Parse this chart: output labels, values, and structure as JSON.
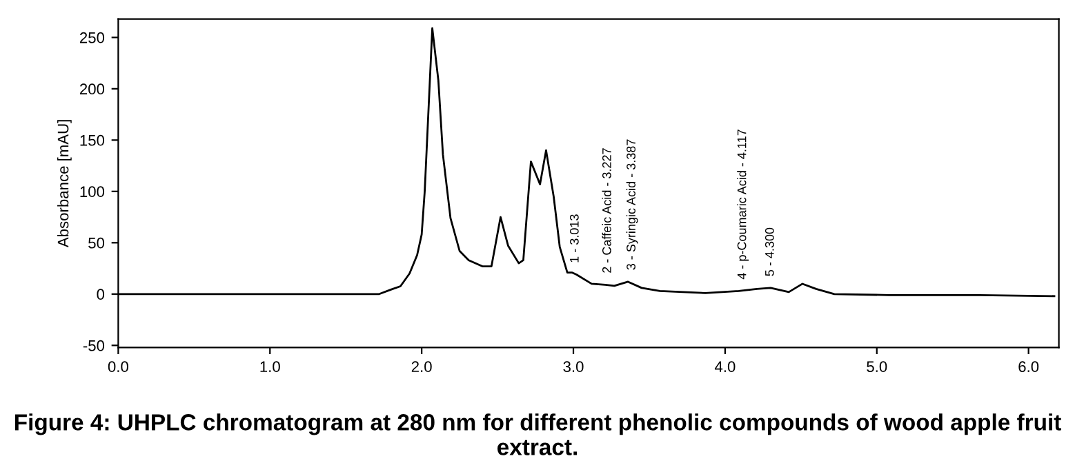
{
  "chart_data": {
    "type": "line",
    "ylabel": "Absorbance [mAU]",
    "x": [
      0,
      1.72,
      1.8,
      1.86,
      1.92,
      1.97,
      2.0,
      2.02,
      2.07,
      2.11,
      2.14,
      2.19,
      2.25,
      2.31,
      2.4,
      2.46,
      2.52,
      2.57,
      2.64,
      2.67,
      2.72,
      2.78,
      2.82,
      2.87,
      2.91,
      2.96,
      2.99,
      3.02,
      3.12,
      3.21,
      3.27,
      3.36,
      3.45,
      3.57,
      3.87,
      4.09,
      4.21,
      4.3,
      4.42,
      4.51,
      4.6,
      4.72,
      5.08,
      5.68,
      6.17
    ],
    "series": [
      {
        "color": "#000000",
        "values": [
          0,
          0,
          4.5,
          7.6,
          20,
          38,
          58,
          100,
          259,
          208,
          136,
          74,
          42,
          33,
          27,
          27,
          75,
          47,
          30,
          33,
          129,
          107,
          140,
          95,
          46,
          21,
          21,
          19,
          10,
          9,
          8,
          12,
          6,
          3,
          1,
          3,
          5,
          6,
          2,
          10,
          5,
          0,
          -1,
          -1,
          -2
        ]
      }
    ],
    "xlim": [
      0,
      6.2
    ],
    "ylim": [
      -52,
      268
    ],
    "xticks": [
      {
        "value": 0,
        "label": "0.0"
      },
      {
        "value": 1,
        "label": "1.0"
      },
      {
        "value": 2,
        "label": "2.0"
      },
      {
        "value": 3,
        "label": "3.0"
      },
      {
        "value": 4,
        "label": "4.0"
      },
      {
        "value": 5,
        "label": "5.0"
      },
      {
        "value": 6,
        "label": "6.0"
      }
    ],
    "yticks": [
      -50,
      0,
      50,
      100,
      150,
      200,
      250
    ],
    "grid": false,
    "legend": false,
    "line_style": "solid",
    "marker": "none",
    "annotations": [
      {
        "text": "1 - 3.013",
        "x": 3.013,
        "y": 19
      },
      {
        "text": "2 - Caffeic Acid - 3.227",
        "x": 3.227,
        "y": 9
      },
      {
        "text": "3 - Syringic Acid - 3.387",
        "x": 3.387,
        "y": 12
      },
      {
        "text": "4 - p-Coumaric Acid - 4.117",
        "x": 4.117,
        "y": 3
      },
      {
        "text": "5 - 4.300",
        "x": 4.3,
        "y": 6
      },
      "Figure 4: UHPLC chromatogram at 280 nm for different phenolic compounds of wood apple fruit extract."
    ]
  }
}
